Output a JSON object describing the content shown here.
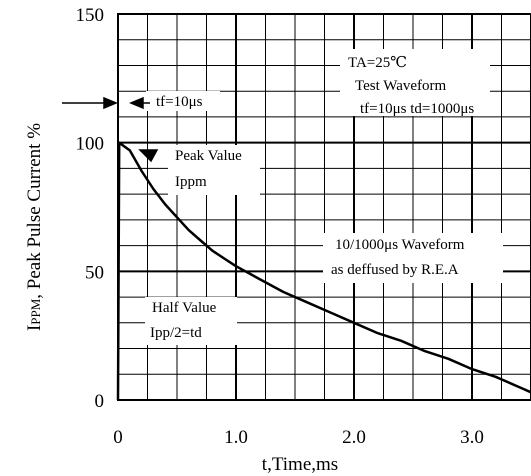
{
  "chart_data": {
    "type": "line",
    "xlabel": "t,Time,ms",
    "ylabel_main": "I",
    "ylabel_sub": "PPM",
    "ylabel_rest": ", Peak Pulse Current %",
    "xlim": [
      0,
      3.5
    ],
    "ylim": [
      0,
      150
    ],
    "x_ticks": [
      {
        "value": 0,
        "label": "0"
      },
      {
        "value": 1.0,
        "label": "1.0"
      },
      {
        "value": 2.0,
        "label": "2.0"
      },
      {
        "value": 3.0,
        "label": "3.0"
      }
    ],
    "y_ticks": [
      {
        "value": 0,
        "label": "0"
      },
      {
        "value": 50,
        "label": "50"
      },
      {
        "value": 100,
        "label": "100"
      },
      {
        "value": 150,
        "label": "150"
      }
    ],
    "grid": true,
    "series": [
      {
        "x": [
          0,
          0.01,
          0.1,
          0.2,
          0.3,
          0.4,
          0.5,
          0.6,
          0.7,
          0.8,
          0.9,
          1.0,
          1.2,
          1.4,
          1.6,
          1.8,
          2.0,
          2.2,
          2.4,
          2.6,
          2.8,
          3.0,
          3.2,
          3.4,
          3.5
        ],
        "y": [
          0,
          100,
          97,
          89,
          82,
          76,
          71,
          66,
          62,
          58,
          55,
          52,
          47,
          42,
          38,
          34,
          30,
          26,
          23,
          19,
          16,
          12,
          9,
          5,
          3
        ]
      }
    ],
    "annotations": {
      "conditions": [
        "TA=25℃",
        "Test Waveform",
        "tf=10μs td=1000μs"
      ],
      "tf": "tf=10μs",
      "peak": [
        "Peak Value",
        "Ippm"
      ],
      "waveform": [
        "10/1000μs Waveform",
        "as deffused by R.E.A"
      ],
      "half": [
        "Half  Value",
        "Ipp/2=td"
      ]
    }
  }
}
